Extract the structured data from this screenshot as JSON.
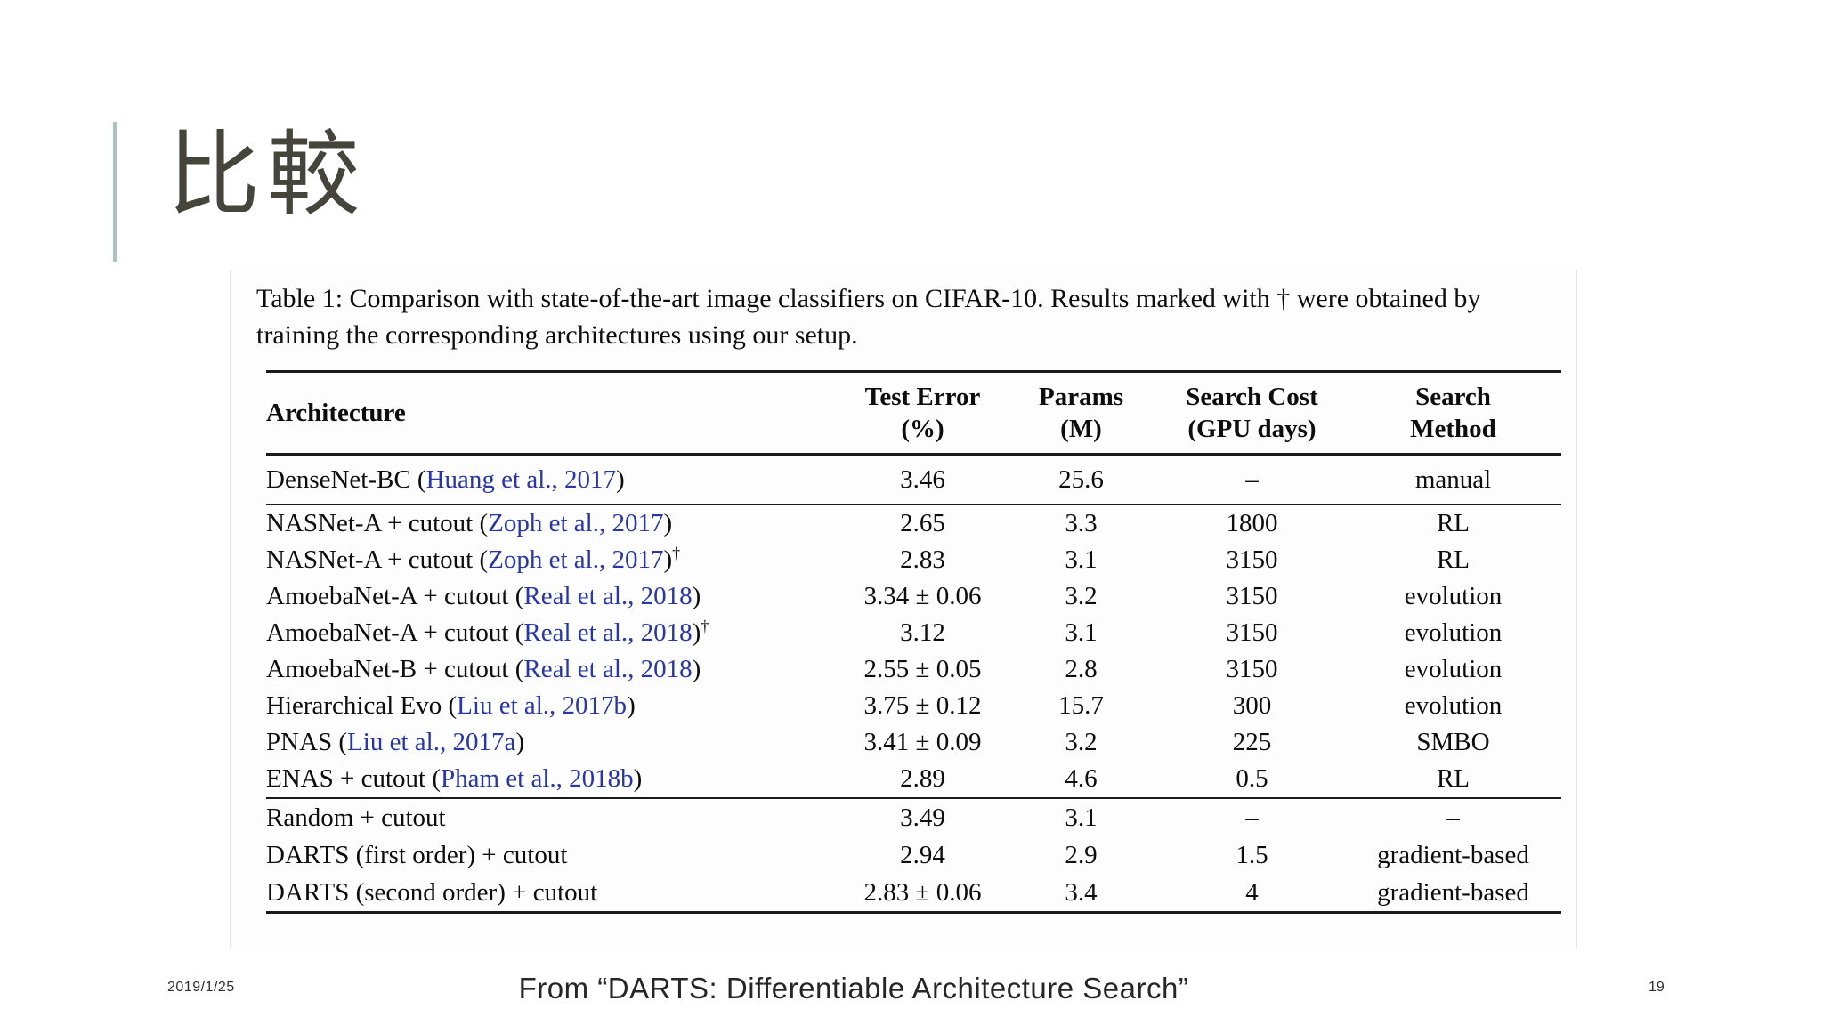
{
  "slide": {
    "title": "比較",
    "footer": {
      "date": "2019/1/25",
      "credit": "From “DARTS: Differentiable Architecture Search”",
      "page": "19"
    }
  },
  "theme": {
    "accent_bar_color": "#a6c6bd",
    "title_color": "#45453b",
    "citation_blue": "#2736a8",
    "table_rule_color": "#1b1b1b",
    "figure_background": "#fdfdfd"
  },
  "paper_table": {
    "caption": "Table 1: Comparison with state-of-the-art image classifiers on CIFAR-10. Results marked with † were obtained by training the corresponding architectures using our setup.",
    "headers": [
      {
        "line1": "Architecture",
        "line2": ""
      },
      {
        "line1": "Test Error",
        "line2": "(%)"
      },
      {
        "line1": "Params",
        "line2": "(M)"
      },
      {
        "line1": "Search Cost",
        "line2": "(GPU days)"
      },
      {
        "line1": "Search",
        "line2": "Method"
      }
    ],
    "sections": [
      {
        "rows": [
          {
            "pre": "DenseNet-BC (",
            "cite": "Huang et al., 2017",
            "post": ")",
            "dagger": false,
            "test_error": "3.46",
            "params": "25.6",
            "cost": "–",
            "method": "manual"
          }
        ]
      },
      {
        "rows": [
          {
            "pre": "NASNet-A + cutout (",
            "cite": "Zoph et al., 2017",
            "post": ")",
            "dagger": false,
            "test_error": "2.65",
            "params": "3.3",
            "cost": "1800",
            "method": "RL"
          },
          {
            "pre": "NASNet-A + cutout (",
            "cite": "Zoph et al., 2017",
            "post": ")",
            "dagger": true,
            "test_error": "2.83",
            "params": "3.1",
            "cost": "3150",
            "method": "RL"
          },
          {
            "pre": "AmoebaNet-A + cutout (",
            "cite": "Real et al., 2018",
            "post": ")",
            "dagger": false,
            "test_error": "3.34 ± 0.06",
            "params": "3.2",
            "cost": "3150",
            "method": "evolution"
          },
          {
            "pre": "AmoebaNet-A + cutout (",
            "cite": "Real et al., 2018",
            "post": ")",
            "dagger": true,
            "test_error": "3.12",
            "params": "3.1",
            "cost": "3150",
            "method": "evolution"
          },
          {
            "pre": "AmoebaNet-B + cutout (",
            "cite": "Real et al., 2018",
            "post": ")",
            "dagger": false,
            "test_error": "2.55 ± 0.05",
            "params": "2.8",
            "cost": "3150",
            "method": "evolution"
          },
          {
            "pre": "Hierarchical Evo (",
            "cite": "Liu et al., 2017b",
            "post": ")",
            "dagger": false,
            "test_error": "3.75 ± 0.12",
            "params": "15.7",
            "cost": "300",
            "method": "evolution"
          },
          {
            "pre": "PNAS (",
            "cite": "Liu et al., 2017a",
            "post": ")",
            "dagger": false,
            "test_error": "3.41 ± 0.09",
            "params": "3.2",
            "cost": "225",
            "method": "SMBO"
          },
          {
            "pre": "ENAS + cutout (",
            "cite": "Pham et al., 2018b",
            "post": ")",
            "dagger": false,
            "test_error": "2.89",
            "params": "4.6",
            "cost": "0.5",
            "method": "RL"
          }
        ]
      },
      {
        "rows": [
          {
            "pre": "Random + cutout",
            "cite": "",
            "post": "",
            "dagger": false,
            "test_error": "3.49",
            "params": "3.1",
            "cost": "–",
            "method": "–"
          },
          {
            "pre": "DARTS (first order) + cutout",
            "cite": "",
            "post": "",
            "dagger": false,
            "test_error": "2.94",
            "params": "2.9",
            "cost": "1.5",
            "method": "gradient-based"
          },
          {
            "pre": "DARTS (second order) + cutout",
            "cite": "",
            "post": "",
            "dagger": false,
            "test_error": "2.83 ± 0.06",
            "params": "3.4",
            "cost": "4",
            "method": "gradient-based"
          }
        ]
      }
    ]
  }
}
